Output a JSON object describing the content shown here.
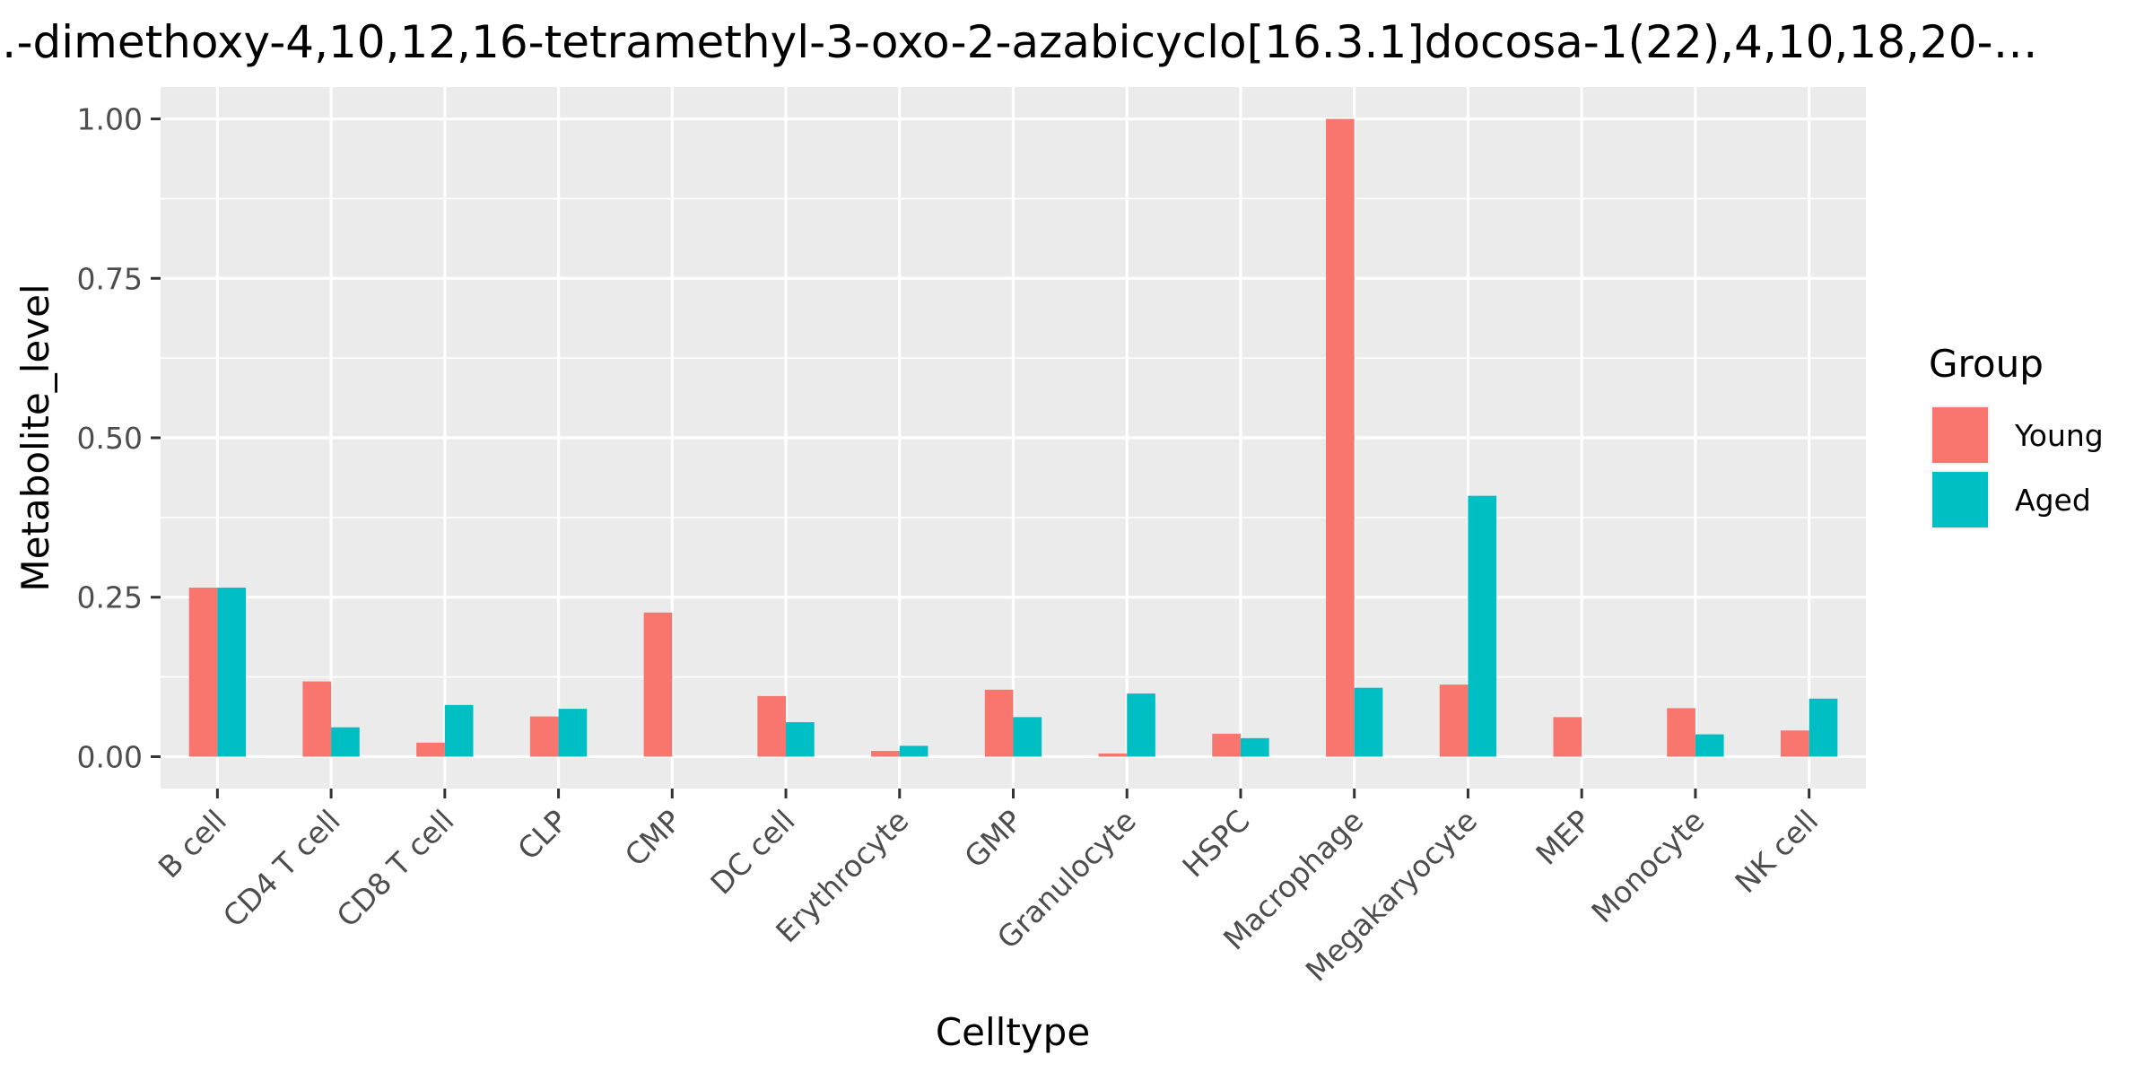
{
  "chart_data": {
    "type": "bar",
    "title": "…-dimethoxy-4,10,12,16-tetramethyl-3-oxo-2-azabicyclo[16.3.1]docosa-1(22),4,10,18,20-…",
    "xlabel": "Celltype",
    "ylabel": "Metabolite_level",
    "categories": [
      "B cell",
      "CD4 T cell",
      "CD8 T cell",
      "CLP",
      "CMP",
      "DC cell",
      "Erythrocyte",
      "GMP",
      "Granulocyte",
      "HSPC",
      "Macrophage",
      "Megakaryocyte",
      "MEP",
      "Monocyte",
      "NK cell"
    ],
    "series": [
      {
        "name": "Young",
        "color": "#F8766D",
        "values": [
          0.265,
          0.118,
          0.022,
          0.063,
          0.226,
          0.095,
          0.009,
          0.105,
          0.005,
          0.036,
          1.0,
          0.113,
          0.062,
          0.076,
          0.041
        ]
      },
      {
        "name": "Aged",
        "color": "#00BFC4",
        "values": [
          0.265,
          0.046,
          0.081,
          0.075,
          null,
          0.054,
          0.017,
          0.062,
          0.099,
          0.029,
          0.108,
          0.409,
          null,
          0.035,
          0.091
        ]
      }
    ],
    "ylim": [
      -0.05,
      1.05
    ],
    "yticks": [
      0.0,
      0.25,
      0.5,
      0.75,
      1.0
    ],
    "ytick_labels": [
      "0.00",
      "0.25",
      "0.50",
      "0.75",
      "1.00"
    ],
    "legend": {
      "title": "Group",
      "position": "right"
    },
    "grid": true,
    "panel_background": "#EBEBEB",
    "grid_color": "#FFFFFF"
  }
}
